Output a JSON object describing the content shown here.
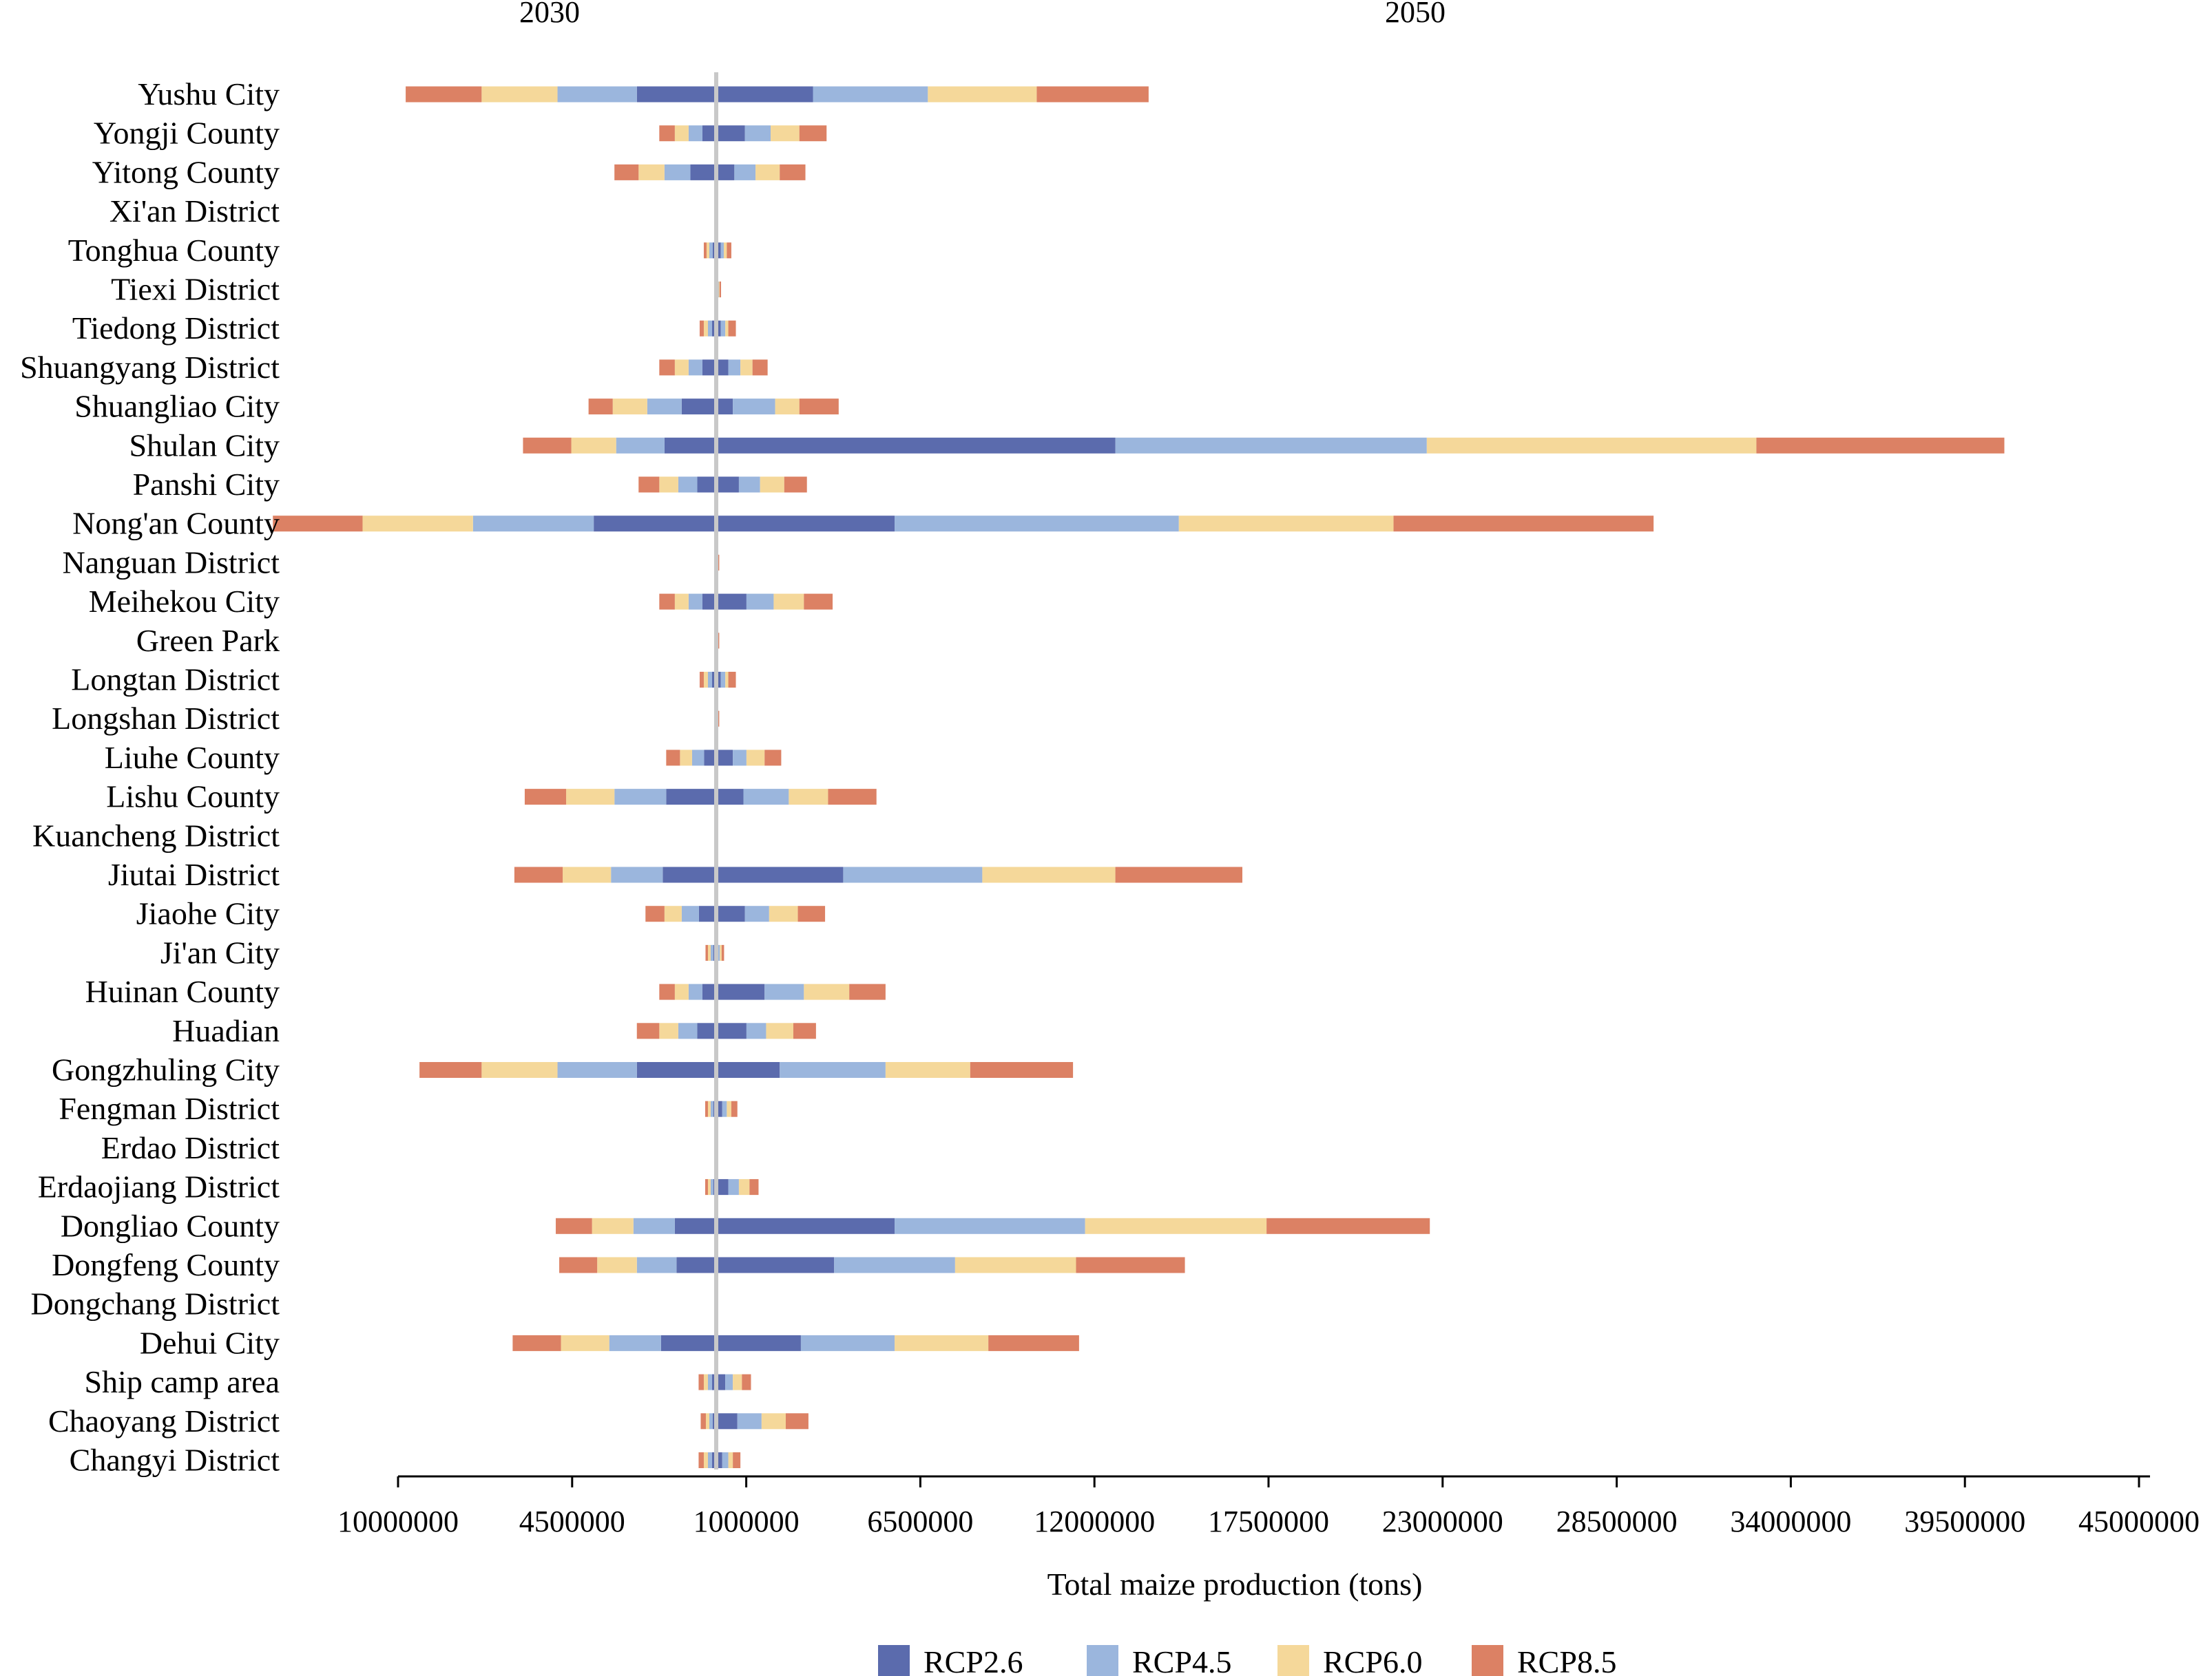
{
  "chart_data": {
    "type": "bar",
    "layout": "diverging-stacked-horizontal",
    "panels": [
      "2030",
      "2050"
    ],
    "xlabel": "Total maize production (tons)",
    "x_tick_labels": [
      "10000000",
      "4500000",
      "1000000",
      "6500000",
      "12000000",
      "17500000",
      "23000000",
      "28500000",
      "34000000",
      "39500000",
      "45000000"
    ],
    "legend_position": "bottom",
    "categories": [
      "Yushu City",
      "Yongji County",
      "Yitong County",
      "Xi'an District",
      "Tonghua County",
      "Tiexi District",
      "Tiedong District",
      "Shuangyang District",
      "Shuangliao City",
      "Shulan City",
      "Panshi City",
      "Nong'an County",
      "Nanguan District",
      "Meihekou City",
      "Green Park",
      "Longtan District",
      "Longshan District",
      "Liuhe County",
      "Lishu County",
      "Kuancheng District",
      "Jiutai District",
      "Jiaohe City",
      "Ji'an City",
      "Huinan County",
      "Huadian",
      "Gongzhuling City",
      "Fengman District",
      "Erdao District",
      "Erdaojiang District",
      "Dongliao County",
      "Dongfeng County",
      "Dongchang District",
      "Dehui City",
      "Ship camp area",
      "Chaoyang District",
      "Changyi District"
    ],
    "series": [
      {
        "name": "RCP2.6",
        "color": "#5b6bad",
        "values_2030": [
          2300000,
          400000,
          750000,
          0,
          100000,
          0,
          120000,
          400000,
          1000000,
          1500000,
          550000,
          3550000,
          0,
          400000,
          0,
          120000,
          0,
          350000,
          1450000,
          0,
          1550000,
          500000,
          80000,
          400000,
          550000,
          2300000,
          80000,
          0,
          80000,
          1200000,
          1150000,
          0,
          1600000,
          120000,
          100000,
          120000
        ],
        "values_2050": [
          3200000,
          950000,
          600000,
          0,
          150000,
          50000,
          150000,
          400000,
          550000,
          13200000,
          750000,
          5900000,
          30000,
          1000000,
          30000,
          150000,
          30000,
          550000,
          900000,
          0,
          4200000,
          950000,
          70000,
          1600000,
          1000000,
          2100000,
          200000,
          0,
          400000,
          5900000,
          3900000,
          0,
          2800000,
          300000,
          700000,
          200000
        ]
      },
      {
        "name": "RCP4.5",
        "color": "#9bb6dd",
        "values_2030": [
          2300000,
          400000,
          750000,
          0,
          100000,
          0,
          120000,
          400000,
          1000000,
          1400000,
          550000,
          3500000,
          0,
          400000,
          0,
          120000,
          0,
          350000,
          1500000,
          0,
          1500000,
          500000,
          80000,
          400000,
          550000,
          2300000,
          80000,
          0,
          80000,
          1200000,
          1150000,
          0,
          1500000,
          120000,
          100000,
          120000
        ],
        "values_2050": [
          3800000,
          850000,
          700000,
          0,
          100000,
          30000,
          150000,
          400000,
          1400000,
          10300000,
          700000,
          9400000,
          20000,
          900000,
          20000,
          150000,
          20000,
          450000,
          1500000,
          0,
          4600000,
          800000,
          50000,
          1300000,
          650000,
          3500000,
          150000,
          0,
          350000,
          6300000,
          4000000,
          0,
          3100000,
          250000,
          800000,
          200000
        ]
      },
      {
        "name": "RCP6.0",
        "color": "#f5d89a",
        "values_2030": [
          2200000,
          400000,
          750000,
          0,
          80000,
          0,
          120000,
          400000,
          1000000,
          1300000,
          550000,
          3200000,
          0,
          400000,
          0,
          120000,
          0,
          350000,
          1400000,
          0,
          1400000,
          500000,
          80000,
          400000,
          550000,
          2200000,
          80000,
          0,
          80000,
          1200000,
          1150000,
          0,
          1400000,
          120000,
          100000,
          120000
        ],
        "values_2050": [
          3600000,
          950000,
          800000,
          0,
          100000,
          30000,
          100000,
          400000,
          800000,
          10900000,
          800000,
          7100000,
          20000,
          1000000,
          20000,
          100000,
          20000,
          600000,
          1300000,
          0,
          4400000,
          950000,
          60000,
          1500000,
          900000,
          2800000,
          150000,
          0,
          350000,
          6000000,
          4000000,
          0,
          3100000,
          300000,
          800000,
          150000
        ]
      },
      {
        "name": "RCP8.5",
        "color": "#dc8164",
        "values_2030": [
          2200000,
          450000,
          700000,
          0,
          80000,
          0,
          120000,
          450000,
          700000,
          1400000,
          600000,
          2600000,
          0,
          450000,
          0,
          120000,
          0,
          400000,
          1200000,
          0,
          1400000,
          550000,
          70000,
          450000,
          650000,
          1800000,
          80000,
          0,
          80000,
          1050000,
          1100000,
          0,
          1400000,
          150000,
          150000,
          150000
        ],
        "values_2050": [
          3700000,
          900000,
          850000,
          0,
          150000,
          50000,
          250000,
          500000,
          1300000,
          8200000,
          750000,
          8600000,
          30000,
          950000,
          30000,
          250000,
          30000,
          550000,
          1600000,
          0,
          4200000,
          900000,
          80000,
          1200000,
          750000,
          3400000,
          200000,
          0,
          300000,
          5400000,
          3600000,
          0,
          3000000,
          300000,
          750000,
          250000
        ]
      }
    ]
  }
}
